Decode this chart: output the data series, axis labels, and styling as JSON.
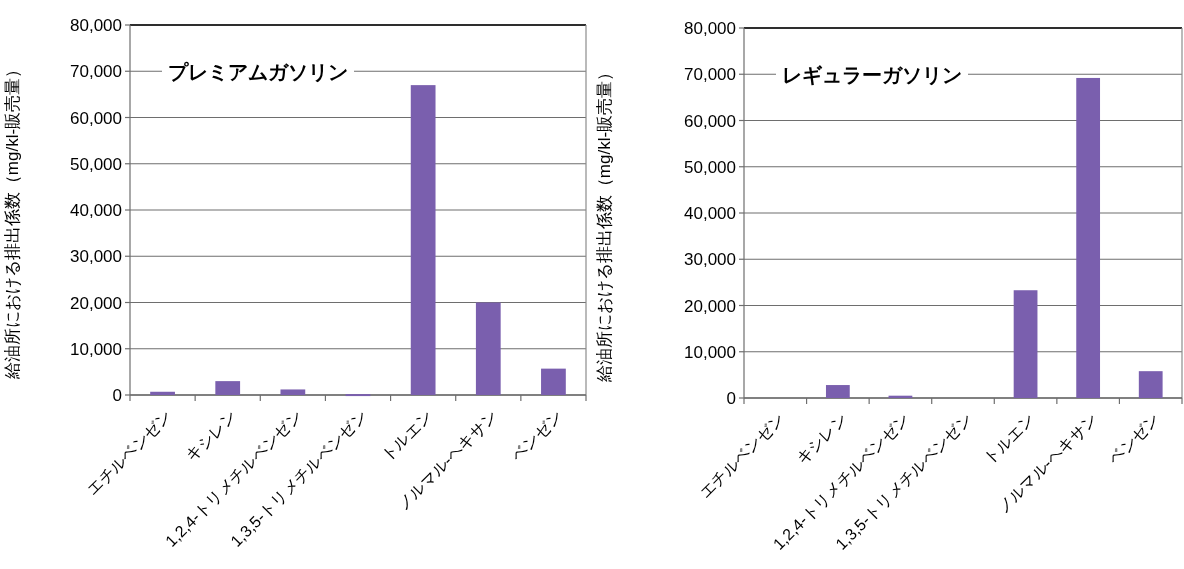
{
  "chart_data": [
    {
      "type": "bar",
      "title": "プレミアムガソリン",
      "ylabel": "給油所における排出係数（mg/kl-販売量）",
      "categories": [
        "エチルベンゼン",
        "キシレン",
        "1,2,4-トリメチルベンゼン",
        "1,3,5-トリメチルベンゼン",
        "トルエン",
        "ノルマル-ヘキサン",
        "ベンゼン"
      ],
      "values": [
        700,
        3000,
        1200,
        200,
        67000,
        20000,
        5700
      ],
      "color": "#7a5fae",
      "ylim": [
        0,
        80000
      ],
      "yticks": [
        {
          "value": 0,
          "label": "0"
        },
        {
          "value": 10000,
          "label": "10,000"
        },
        {
          "value": 20000,
          "label": "20,000"
        },
        {
          "value": 30000,
          "label": "30,000"
        },
        {
          "value": 40000,
          "label": "40,000"
        },
        {
          "value": 50000,
          "label": "50,000"
        },
        {
          "value": 60000,
          "label": "60,000"
        },
        {
          "value": 70000,
          "label": "70,000"
        },
        {
          "value": 80000,
          "label": "80,000"
        }
      ],
      "grid": "y"
    },
    {
      "type": "bar",
      "title": "レギュラーガソリン",
      "ylabel": "給油所における排出係数（mg/kl-販売量）",
      "categories": [
        "エチルベンゼン",
        "キシレン",
        "1,2,4-トリメチルベンゼン",
        "1,3,5-トリメチルベンゼン",
        "トルエン",
        "ノルマル-ヘキサン",
        "ベンゼン"
      ],
      "values": [
        null,
        2800,
        500,
        null,
        23300,
        69200,
        5800
      ],
      "color": "#7a5fae",
      "ylim": [
        0,
        80000
      ],
      "yticks": [
        {
          "value": 0,
          "label": "0"
        },
        {
          "value": 10000,
          "label": "10,000"
        },
        {
          "value": 20000,
          "label": "20,000"
        },
        {
          "value": 30000,
          "label": "30,000"
        },
        {
          "value": 40000,
          "label": "40,000"
        },
        {
          "value": 50000,
          "label": "50,000"
        },
        {
          "value": 60000,
          "label": "60,000"
        },
        {
          "value": 70000,
          "label": "70,000"
        },
        {
          "value": 80000,
          "label": "80,000"
        }
      ],
      "grid": "y"
    }
  ]
}
